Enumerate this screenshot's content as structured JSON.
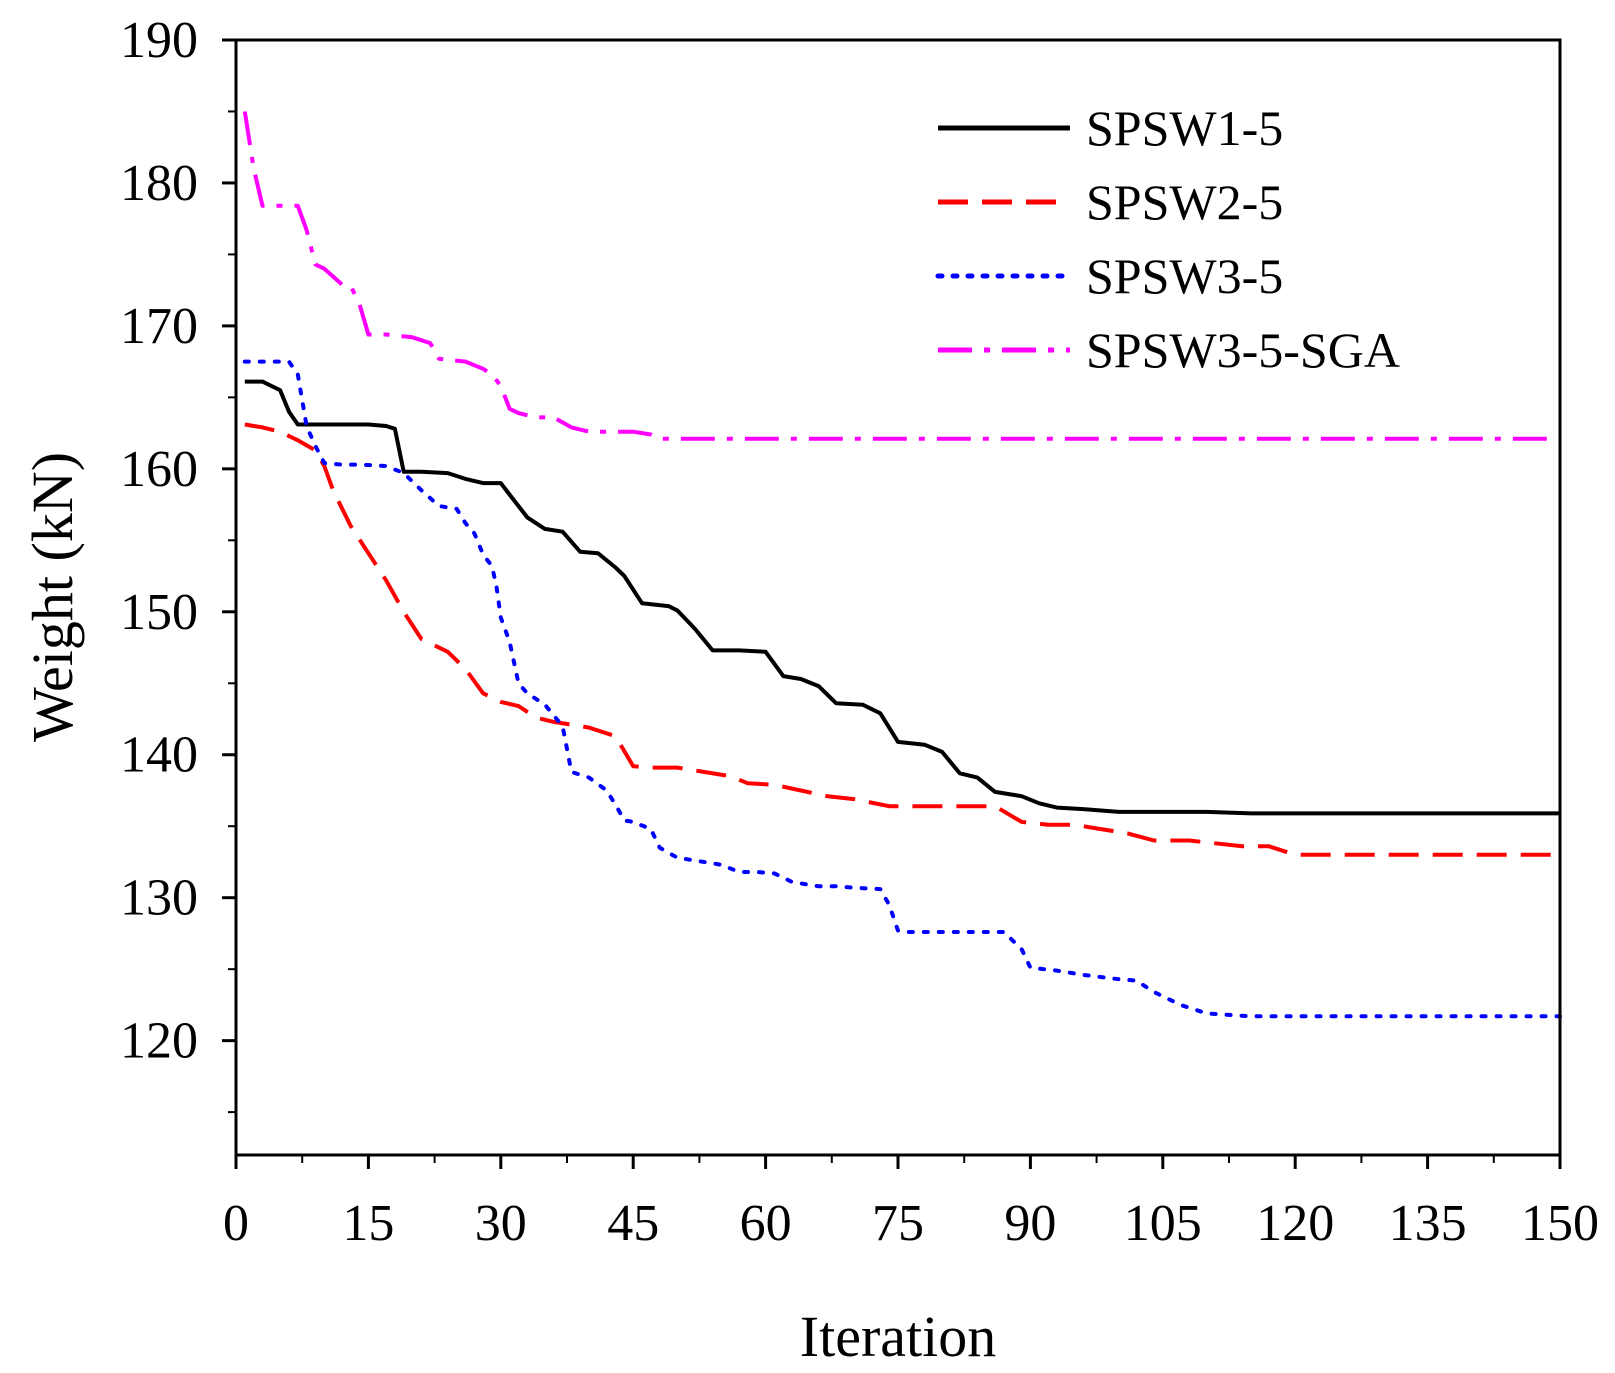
{
  "chart_data": {
    "type": "line",
    "title": "",
    "xlabel": "Iteration",
    "ylabel": "Weight (kN)",
    "xlim": [
      0,
      150
    ],
    "ylim": [
      112,
      190
    ],
    "xticks": [
      0,
      15,
      30,
      45,
      60,
      75,
      90,
      105,
      120,
      135,
      150
    ],
    "yticks": [
      120,
      130,
      140,
      150,
      160,
      170,
      180,
      190
    ],
    "legend_position": "top-right",
    "series": [
      {
        "name": "SPSW1-5",
        "color": "#000000",
        "style": "solid",
        "x": [
          1,
          3,
          5,
          6,
          7,
          9,
          12,
          15,
          17,
          18,
          19,
          21,
          24,
          26,
          28,
          30,
          31,
          33,
          35,
          37,
          39,
          41,
          43,
          44,
          46,
          49,
          50,
          52,
          54,
          57,
          60,
          62,
          64,
          66,
          68,
          71,
          73,
          75,
          78,
          80,
          82,
          84,
          86,
          89,
          91,
          93,
          96,
          98,
          100,
          103,
          110,
          115,
          120,
          130,
          140,
          150
        ],
        "y": [
          166.1,
          166.1,
          165.5,
          164,
          163.1,
          163.1,
          163.1,
          163.1,
          163,
          162.8,
          159.8,
          159.8,
          159.7,
          159.3,
          159,
          159,
          158.2,
          156.6,
          155.8,
          155.6,
          154.2,
          154.1,
          153.1,
          152.5,
          150.6,
          150.4,
          150.1,
          148.8,
          147.3,
          147.3,
          147.2,
          145.5,
          145.3,
          144.8,
          143.6,
          143.5,
          142.9,
          140.9,
          140.7,
          140.2,
          138.7,
          138.4,
          137.4,
          137.1,
          136.6,
          136.3,
          136.2,
          136.1,
          136,
          136,
          136,
          135.9,
          135.9,
          135.9,
          135.9,
          135.9
        ]
      },
      {
        "name": "SPSW2-5",
        "color": "#ff0000",
        "style": "dashed",
        "x": [
          1,
          3,
          5,
          7,
          9,
          10,
          11,
          13,
          15,
          17,
          19,
          21,
          24,
          26,
          28,
          30,
          32,
          34,
          36,
          38,
          40,
          43,
          45,
          47,
          50,
          53,
          56,
          58,
          61,
          64,
          67,
          70,
          74,
          78,
          82,
          86,
          89,
          92,
          95,
          98,
          101,
          104,
          108,
          114,
          117,
          120,
          130,
          140,
          150
        ],
        "y": [
          163.1,
          162.9,
          162.6,
          162,
          161.3,
          160.2,
          158.5,
          156,
          154.1,
          152.2,
          150,
          148.1,
          147.2,
          146,
          144.3,
          143.7,
          143.4,
          142.6,
          142.3,
          142.1,
          141.9,
          141.3,
          139.2,
          139.1,
          139.1,
          138.8,
          138.5,
          138,
          137.9,
          137.5,
          137.1,
          136.9,
          136.4,
          136.4,
          136.4,
          136.4,
          135.3,
          135.1,
          135.1,
          134.8,
          134.5,
          134,
          134,
          133.6,
          133.6,
          133,
          133,
          133,
          133
        ]
      },
      {
        "name": "SPSW3-5",
        "color": "#0000ff",
        "style": "dotted",
        "x": [
          1,
          2,
          4,
          6,
          7,
          8,
          9,
          10,
          12,
          14,
          17,
          19,
          21,
          23,
          25,
          26,
          27,
          28,
          29,
          29.5,
          30,
          31,
          32,
          33,
          35,
          37,
          38,
          40,
          42,
          43,
          44,
          45,
          47,
          48,
          50,
          52,
          55,
          57,
          59,
          61,
          63,
          66,
          68,
          70,
          73,
          74,
          75,
          76,
          80,
          84,
          87,
          89,
          90,
          93,
          96,
          100,
          102,
          104,
          107,
          110,
          115,
          120,
          130,
          140,
          150
        ],
        "y": [
          167.5,
          167.5,
          167.5,
          167.5,
          166.6,
          163,
          161.6,
          160.4,
          160.3,
          160.3,
          160.2,
          159.7,
          158.5,
          157.4,
          157.2,
          156.2,
          155.5,
          154,
          153.2,
          151.8,
          149.6,
          147.9,
          145,
          144.3,
          143.5,
          142,
          138.8,
          138.4,
          137.5,
          136.5,
          135.4,
          135.3,
          134.8,
          133.5,
          132.8,
          132.6,
          132.3,
          131.8,
          131.8,
          131.7,
          131.1,
          130.8,
          130.8,
          130.7,
          130.6,
          129.5,
          127.7,
          127.6,
          127.6,
          127.6,
          127.6,
          126.4,
          125.1,
          124.9,
          124.6,
          124.3,
          124.2,
          123.4,
          122.5,
          121.9,
          121.7,
          121.7,
          121.7,
          121.7,
          121.7
        ]
      },
      {
        "name": "SPSW3-5-SGA",
        "color": "#ff00ff",
        "style": "dashdot",
        "x": [
          1,
          2,
          3,
          5,
          7,
          8,
          9,
          10,
          12,
          13,
          14,
          15,
          17,
          20,
          22,
          23,
          26,
          28,
          29,
          30,
          31,
          32,
          34,
          36,
          38,
          40,
          42,
          45,
          47,
          48,
          50,
          55,
          60,
          70,
          80,
          90,
          100,
          110,
          120,
          130,
          140,
          150
        ],
        "y": [
          185,
          181,
          178.4,
          178.4,
          178.4,
          176.7,
          174.3,
          174,
          172.9,
          172.8,
          171.5,
          169.4,
          169.4,
          169.2,
          168.8,
          167.7,
          167.5,
          167,
          166.6,
          165.8,
          164.2,
          163.9,
          163.6,
          163.6,
          162.9,
          162.6,
          162.6,
          162.6,
          162.4,
          162.1,
          162.1,
          162.1,
          162.1,
          162.1,
          162.1,
          162.1,
          162.1,
          162.1,
          162.1,
          162.1,
          162.1,
          162.1
        ]
      }
    ]
  }
}
